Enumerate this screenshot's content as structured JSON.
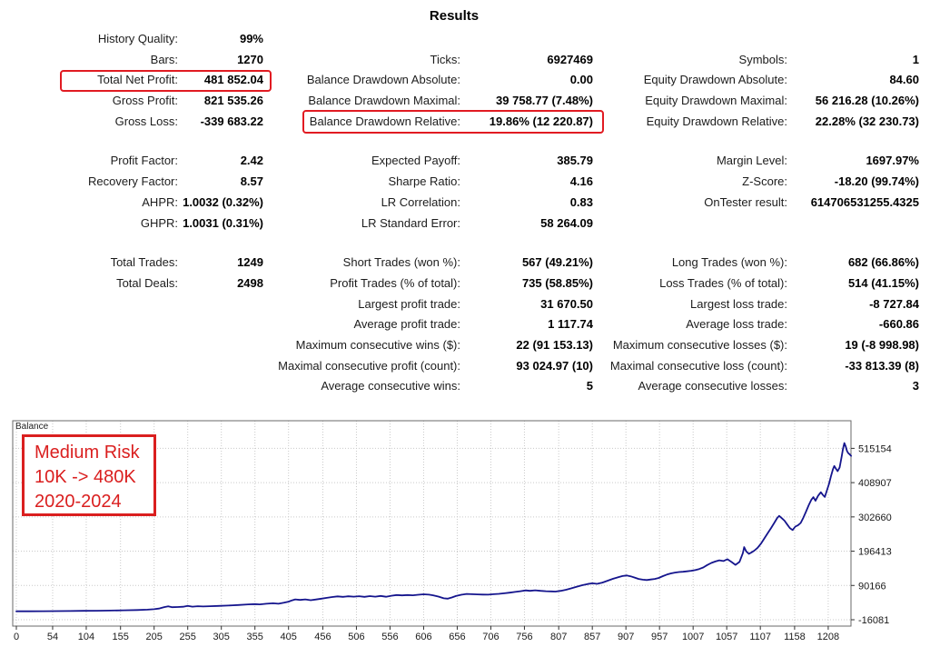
{
  "title": "Results",
  "colors": {
    "highlight_red": "#e11b22",
    "annotation_red": "#da1f1f",
    "line_blue": "#15158d",
    "grid_gray": "#c9c9c9"
  },
  "stats": {
    "rows": [
      {
        "cells": [
          {
            "label": "History Quality:",
            "value": "99%"
          },
          null,
          null
        ]
      },
      {
        "cells": [
          {
            "label": "Bars:",
            "value": "1270"
          },
          {
            "label": "Ticks:",
            "value": "6927469"
          },
          {
            "label": "Symbols:",
            "value": "1"
          }
        ]
      },
      {
        "cells": [
          {
            "label": "Total Net Profit:",
            "value": "481 852.04",
            "highlight": true
          },
          {
            "label": "Balance Drawdown Absolute:",
            "value": "0.00"
          },
          {
            "label": "Equity Drawdown Absolute:",
            "value": "84.60"
          }
        ]
      },
      {
        "cells": [
          {
            "label": "Gross Profit:",
            "value": "821 535.26"
          },
          {
            "label": "Balance Drawdown Maximal:",
            "value": "39 758.77 (7.48%)"
          },
          {
            "label": "Equity Drawdown Maximal:",
            "value": "56 216.28 (10.26%)"
          }
        ]
      },
      {
        "cells": [
          {
            "label": "Gross Loss:",
            "value": "-339 683.22"
          },
          {
            "label": "Balance Drawdown Relative:",
            "value": "19.86% (12 220.87)",
            "highlight": true
          },
          {
            "label": "Equity Drawdown Relative:",
            "value": "22.28% (32 230.73)"
          }
        ],
        "gap_after": true
      },
      {
        "cells": [
          {
            "label": "Profit Factor:",
            "value": "2.42"
          },
          {
            "label": "Expected Payoff:",
            "value": "385.79"
          },
          {
            "label": "Margin Level:",
            "value": "1697.97%"
          }
        ]
      },
      {
        "cells": [
          {
            "label": "Recovery Factor:",
            "value": "8.57"
          },
          {
            "label": "Sharpe Ratio:",
            "value": "4.16"
          },
          {
            "label": "Z-Score:",
            "value": "-18.20 (99.74%)"
          }
        ]
      },
      {
        "cells": [
          {
            "label": "AHPR:",
            "value": "1.0032 (0.32%)"
          },
          {
            "label": "LR Correlation:",
            "value": "0.83"
          },
          {
            "label": "OnTester result:",
            "value": "614706531255.4325"
          }
        ]
      },
      {
        "cells": [
          {
            "label": "GHPR:",
            "value": "1.0031 (0.31%)"
          },
          {
            "label": "LR Standard Error:",
            "value": "58 264.09"
          },
          null
        ],
        "gap_after": true
      },
      {
        "cells": [
          {
            "label": "Total Trades:",
            "value": "1249"
          },
          {
            "label": "Short Trades (won %):",
            "value": "567 (49.21%)"
          },
          {
            "label": "Long Trades (won %):",
            "value": "682 (66.86%)"
          }
        ]
      },
      {
        "cells": [
          {
            "label": "Total Deals:",
            "value": "2498"
          },
          {
            "label": "Profit Trades (% of total):",
            "value": "735 (58.85%)"
          },
          {
            "label": "Loss Trades (% of total):",
            "value": "514 (41.15%)"
          }
        ]
      },
      {
        "cells": [
          null,
          {
            "label": "Largest profit trade:",
            "value": "31 670.50"
          },
          {
            "label": "Largest loss trade:",
            "value": "-8 727.84"
          }
        ]
      },
      {
        "cells": [
          null,
          {
            "label": "Average profit trade:",
            "value": "1 117.74"
          },
          {
            "label": "Average loss trade:",
            "value": "-660.86"
          }
        ]
      },
      {
        "cells": [
          null,
          {
            "label": "Maximum consecutive wins ($):",
            "value": "22 (91 153.13)"
          },
          {
            "label": "Maximum consecutive losses ($):",
            "value": "19 (-8 998.98)"
          }
        ]
      },
      {
        "cells": [
          null,
          {
            "label": "Maximal consecutive profit (count):",
            "value": "93 024.97 (10)"
          },
          {
            "label": "Maximal consecutive loss (count):",
            "value": "-33 813.39 (8)"
          }
        ]
      },
      {
        "cells": [
          null,
          {
            "label": "Average consecutive wins:",
            "value": "5"
          },
          {
            "label": "Average consecutive losses:",
            "value": "3"
          }
        ]
      }
    ]
  },
  "chart_data": {
    "type": "line",
    "title": "Balance",
    "xlabel": "",
    "ylabel": "",
    "x_ticks": [
      0,
      54,
      104,
      155,
      205,
      255,
      305,
      355,
      405,
      456,
      506,
      556,
      606,
      656,
      706,
      756,
      807,
      857,
      907,
      957,
      1007,
      1057,
      1107,
      1158,
      1208
    ],
    "y_ticks": [
      515154,
      408907,
      302660,
      196413,
      90166,
      -16081
    ],
    "x_range": [
      0,
      1242
    ],
    "y_range": [
      -36000,
      601000
    ],
    "grid": "dotted",
    "legend_position": "none",
    "annotation": {
      "lines": [
        "Medium Risk",
        "10K -> 480K",
        "2020-2024"
      ]
    },
    "series": [
      {
        "name": "Balance",
        "points": [
          [
            0,
            10000
          ],
          [
            20,
            10200
          ],
          [
            40,
            10450
          ],
          [
            60,
            10700
          ],
          [
            80,
            11000
          ],
          [
            100,
            11400
          ],
          [
            120,
            11900
          ],
          [
            140,
            12400
          ],
          [
            160,
            13100
          ],
          [
            180,
            14000
          ],
          [
            195,
            15200
          ],
          [
            205,
            16500
          ],
          [
            212,
            18500
          ],
          [
            220,
            23000
          ],
          [
            226,
            25500
          ],
          [
            232,
            22800
          ],
          [
            240,
            23300
          ],
          [
            248,
            24300
          ],
          [
            255,
            27000
          ],
          [
            262,
            24600
          ],
          [
            270,
            26000
          ],
          [
            278,
            25000
          ],
          [
            288,
            26000
          ],
          [
            300,
            26800
          ],
          [
            315,
            28000
          ],
          [
            330,
            29500
          ],
          [
            345,
            31500
          ],
          [
            355,
            32500
          ],
          [
            362,
            31400
          ],
          [
            372,
            33400
          ],
          [
            382,
            35000
          ],
          [
            390,
            33600
          ],
          [
            398,
            36500
          ],
          [
            405,
            40000
          ],
          [
            410,
            44000
          ],
          [
            415,
            47000
          ],
          [
            422,
            45300
          ],
          [
            430,
            47000
          ],
          [
            438,
            44600
          ],
          [
            446,
            46800
          ],
          [
            454,
            49400
          ],
          [
            462,
            51800
          ],
          [
            470,
            54200
          ],
          [
            478,
            56300
          ],
          [
            486,
            55000
          ],
          [
            494,
            56600
          ],
          [
            502,
            55400
          ],
          [
            510,
            57000
          ],
          [
            518,
            55000
          ],
          [
            526,
            57100
          ],
          [
            534,
            55600
          ],
          [
            542,
            57600
          ],
          [
            550,
            55100
          ],
          [
            558,
            58400
          ],
          [
            566,
            60400
          ],
          [
            574,
            59400
          ],
          [
            582,
            60600
          ],
          [
            590,
            59600
          ],
          [
            598,
            61400
          ],
          [
            606,
            62900
          ],
          [
            614,
            61800
          ],
          [
            620,
            59800
          ],
          [
            628,
            55800
          ],
          [
            636,
            50500
          ],
          [
            642,
            49300
          ],
          [
            648,
            53000
          ],
          [
            654,
            57500
          ],
          [
            662,
            61500
          ],
          [
            670,
            64000
          ],
          [
            678,
            63000
          ],
          [
            686,
            62400
          ],
          [
            694,
            62000
          ],
          [
            702,
            61700
          ],
          [
            710,
            63000
          ],
          [
            718,
            64200
          ],
          [
            726,
            65800
          ],
          [
            734,
            67800
          ],
          [
            742,
            70000
          ],
          [
            750,
            72500
          ],
          [
            758,
            75000
          ],
          [
            764,
            73600
          ],
          [
            772,
            75200
          ],
          [
            780,
            73400
          ],
          [
            788,
            72400
          ],
          [
            796,
            71800
          ],
          [
            802,
            71200
          ],
          [
            810,
            73400
          ],
          [
            818,
            77000
          ],
          [
            826,
            81500
          ],
          [
            834,
            86500
          ],
          [
            842,
            91000
          ],
          [
            850,
            94500
          ],
          [
            857,
            97000
          ],
          [
            864,
            95200
          ],
          [
            872,
            99000
          ],
          [
            880,
            105000
          ],
          [
            888,
            111000
          ],
          [
            896,
            116000
          ],
          [
            902,
            119500
          ],
          [
            908,
            121000
          ],
          [
            914,
            118500
          ],
          [
            920,
            114500
          ],
          [
            926,
            110500
          ],
          [
            932,
            108000
          ],
          [
            938,
            107000
          ],
          [
            944,
            108800
          ],
          [
            950,
            110500
          ],
          [
            956,
            113500
          ],
          [
            962,
            119000
          ],
          [
            968,
            124000
          ],
          [
            974,
            127500
          ],
          [
            980,
            130000
          ],
          [
            986,
            131800
          ],
          [
            992,
            132600
          ],
          [
            998,
            134000
          ],
          [
            1004,
            135600
          ],
          [
            1010,
            137800
          ],
          [
            1016,
            141000
          ],
          [
            1022,
            146000
          ],
          [
            1028,
            153500
          ],
          [
            1034,
            160000
          ],
          [
            1040,
            164500
          ],
          [
            1046,
            168000
          ],
          [
            1052,
            166000
          ],
          [
            1058,
            171500
          ],
          [
            1064,
            163000
          ],
          [
            1070,
            154000
          ],
          [
            1076,
            163000
          ],
          [
            1081,
            190000
          ],
          [
            1083,
            209000
          ],
          [
            1086,
            196000
          ],
          [
            1090,
            188000
          ],
          [
            1094,
            193000
          ],
          [
            1098,
            198000
          ],
          [
            1103,
            207000
          ],
          [
            1108,
            220000
          ],
          [
            1113,
            236000
          ],
          [
            1118,
            252000
          ],
          [
            1123,
            268000
          ],
          [
            1128,
            285000
          ],
          [
            1132,
            299000
          ],
          [
            1135,
            306000
          ],
          [
            1139,
            298500
          ],
          [
            1143,
            291000
          ],
          [
            1147,
            279000
          ],
          [
            1151,
            268000
          ],
          [
            1155,
            262000
          ],
          [
            1159,
            272500
          ],
          [
            1163,
            276500
          ],
          [
            1167,
            284000
          ],
          [
            1171,
            300000
          ],
          [
            1175,
            319000
          ],
          [
            1179,
            339000
          ],
          [
            1183,
            356000
          ],
          [
            1186,
            364000
          ],
          [
            1189,
            352500
          ],
          [
            1193,
            368000
          ],
          [
            1197,
            379000
          ],
          [
            1200,
            371000
          ],
          [
            1203,
            364500
          ],
          [
            1206,
            384000
          ],
          [
            1209,
            404000
          ],
          [
            1212,
            428000
          ],
          [
            1215,
            450000
          ],
          [
            1217,
            460500
          ],
          [
            1220,
            450500
          ],
          [
            1222,
            444500
          ],
          [
            1225,
            456000
          ],
          [
            1228,
            489000
          ],
          [
            1230,
            514000
          ],
          [
            1232,
            531530
          ],
          [
            1234,
            521000
          ],
          [
            1236,
            507000
          ],
          [
            1238,
            500000
          ],
          [
            1240,
            496500
          ],
          [
            1242,
            491852
          ]
        ]
      }
    ]
  }
}
